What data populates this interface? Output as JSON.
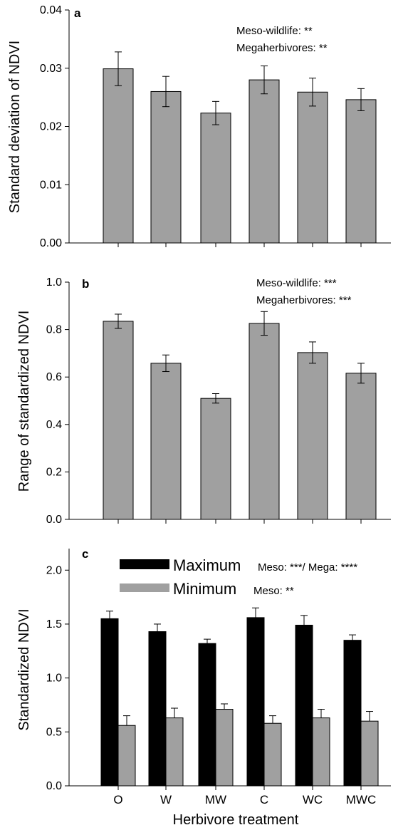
{
  "chart_data": [
    {
      "panel": "a",
      "type": "bar",
      "categories": [
        "O",
        "W",
        "MW",
        "C",
        "WC",
        "MWC"
      ],
      "values": [
        0.0299,
        0.026,
        0.0223,
        0.028,
        0.0259,
        0.0246
      ],
      "errors": [
        0.0029,
        0.0026,
        0.002,
        0.0024,
        0.0024,
        0.0019
      ],
      "ylabel": "Standard deviation of NDVI",
      "ylim": [
        0,
        0.04
      ],
      "yticks": [
        "0.00",
        "0.01",
        "0.02",
        "0.03",
        "0.04"
      ],
      "annotations": [
        "Meso-wildlife: **",
        "Megaherbivores: **"
      ],
      "bar_color": "#a0a0a0"
    },
    {
      "panel": "b",
      "type": "bar",
      "categories": [
        "O",
        "W",
        "MW",
        "C",
        "WC",
        "MWC"
      ],
      "values": [
        0.835,
        0.658,
        0.51,
        0.826,
        0.703,
        0.616
      ],
      "errors": [
        0.03,
        0.035,
        0.02,
        0.05,
        0.045,
        0.042
      ],
      "ylabel": "Range of standardized NDVI",
      "ylim": [
        0,
        1.0
      ],
      "yticks": [
        "0.0",
        "0.2",
        "0.4",
        "0.6",
        "0.8",
        "1.0"
      ],
      "annotations": [
        "Meso-wildlife: ***",
        "Megaherbivores: ***"
      ],
      "bar_color": "#a0a0a0"
    },
    {
      "panel": "c",
      "type": "bar",
      "categories": [
        "O",
        "W",
        "MW",
        "C",
        "WC",
        "MWC"
      ],
      "series": [
        {
          "name": "Maximum",
          "values": [
            1.55,
            1.43,
            1.32,
            1.56,
            1.49,
            1.35
          ],
          "errors": [
            0.07,
            0.07,
            0.04,
            0.09,
            0.09,
            0.05
          ],
          "color": "#000000",
          "stat": "Meso: ***/ Mega: ****"
        },
        {
          "name": "Minimum",
          "values": [
            0.56,
            0.63,
            0.71,
            0.58,
            0.63,
            0.6
          ],
          "errors": [
            0.09,
            0.09,
            0.05,
            0.07,
            0.08,
            0.09
          ],
          "color": "#a0a0a0",
          "stat": "Meso: **"
        }
      ],
      "ylabel": "Standardized NDVI",
      "xlabel": "Herbivore treatment",
      "ylim": [
        0,
        2.2
      ],
      "yticks": [
        "0.0",
        "0.5",
        "1.0",
        "1.5",
        "2.0"
      ],
      "legend_placement": "top"
    }
  ]
}
